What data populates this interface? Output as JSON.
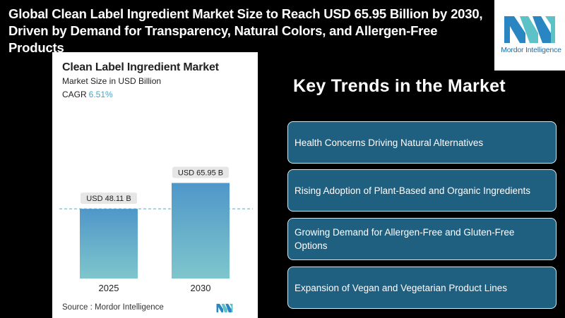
{
  "headline": {
    "line1": "Global Clean Label Ingredient Market Size to Reach USD 65.95 Billion by 2030,",
    "line2": "Driven by Demand for Transparency, Natural Colors, and Allergen-Free Products"
  },
  "logo": {
    "text": "Mordor Intelligence"
  },
  "chart": {
    "title": "Clean Label Ingredient Market",
    "subtitle": "Market Size in USD Billion",
    "cagr_label": "CAGR",
    "cagr_value": "6.51%",
    "source": "Source :  Mordor Intelligence"
  },
  "chart_data": {
    "type": "bar",
    "title": "Clean Label Ingredient Market",
    "ylabel": "Market Size in USD Billion",
    "categories": [
      "2025",
      "2030"
    ],
    "values": [
      48.11,
      65.95
    ],
    "data_labels": [
      "USD 48.11 B",
      "USD 65.95 B"
    ],
    "ylim": [
      0,
      70
    ],
    "grid": false,
    "reference_line": 48.11,
    "colors": {
      "bar_top": "#4f97c9",
      "bar_bottom": "#7fc6cc",
      "label_bg": "#e6e6e6",
      "ref_line": "#5fa4c8"
    }
  },
  "trends": {
    "heading": "Key Trends in the Market",
    "items": [
      "Health Concerns Driving Natural Alternatives",
      "Rising Adoption of Plant-Based and Organic Ingredients",
      "Growing Demand for Allergen-Free and Gluten-Free Options",
      "Expansion of Vegan and Vegetarian Product Lines"
    ]
  }
}
